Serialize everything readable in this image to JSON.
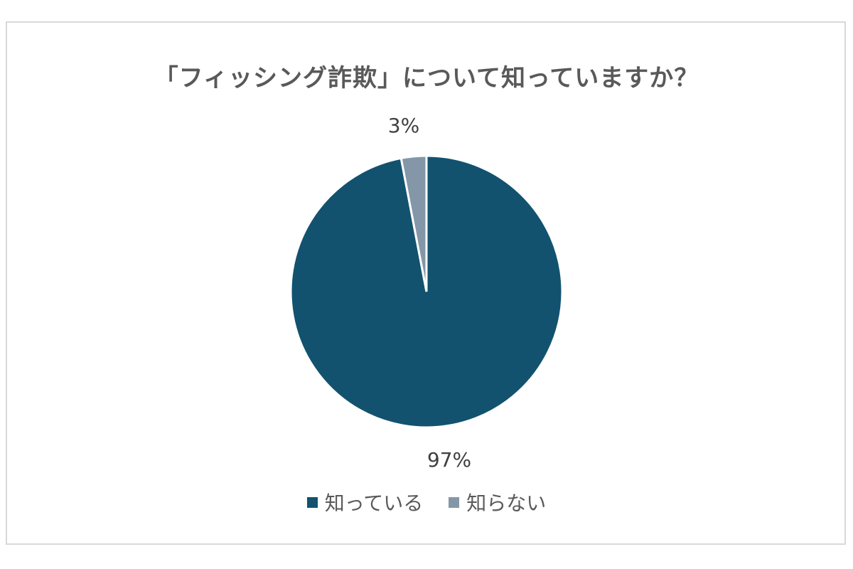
{
  "chart_data": {
    "type": "pie",
    "title": "「フィッシング詐欺」について知っていますか？",
    "categories": [
      "知っている",
      "知らない"
    ],
    "values": [
      97,
      3
    ],
    "data_labels": [
      "97%",
      "3%"
    ],
    "colors": [
      "#12526f",
      "#8497a9"
    ],
    "legend_position": "bottom"
  }
}
